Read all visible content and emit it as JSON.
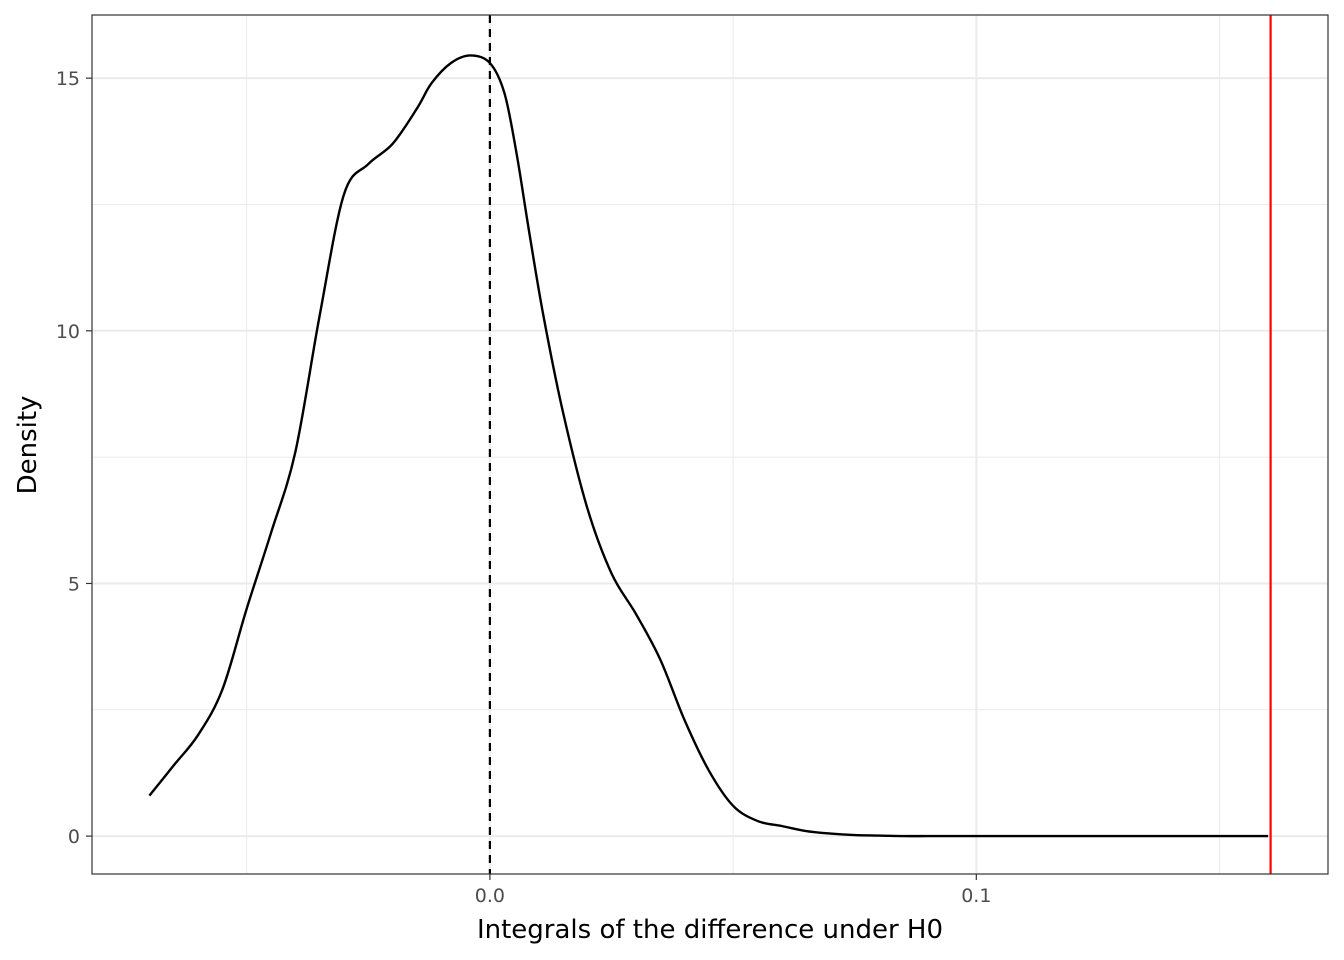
{
  "chart_data": {
    "type": "line",
    "title": "",
    "xlabel": "Integrals of the difference under H0",
    "ylabel": "Density",
    "xlim": [
      -0.0818,
      0.1723
    ],
    "ylim": [
      -0.75,
      16.25
    ],
    "x_ticks": [
      {
        "value": 0.0,
        "label": "0.0"
      },
      {
        "value": 0.1,
        "label": "0.1"
      }
    ],
    "x_minor_grid": [
      -0.05,
      0.05,
      0.15
    ],
    "y_ticks": [
      {
        "value": 0,
        "label": "0"
      },
      {
        "value": 5,
        "label": "5"
      },
      {
        "value": 10,
        "label": "10"
      },
      {
        "value": 15,
        "label": "15"
      }
    ],
    "y_minor_grid": [
      2.5,
      7.5,
      12.5
    ],
    "grid": true,
    "series": [
      {
        "color": "#000000",
        "x": [
          -0.07,
          -0.065,
          -0.06,
          -0.055,
          -0.05,
          -0.045,
          -0.04,
          -0.035,
          -0.03,
          -0.025,
          -0.02,
          -0.015,
          -0.012,
          -0.008,
          -0.004,
          0.0,
          0.003,
          0.0055,
          0.008,
          0.011,
          0.015,
          0.02,
          0.025,
          0.03,
          0.035,
          0.04,
          0.045,
          0.05,
          0.055,
          0.06,
          0.065,
          0.07,
          0.075,
          0.08,
          0.085,
          0.09,
          0.095,
          0.1,
          0.11,
          0.12,
          0.13,
          0.14,
          0.15,
          0.16
        ],
        "y": [
          0.8,
          1.4,
          2.0,
          2.9,
          4.5,
          6.0,
          7.6,
          10.3,
          12.7,
          13.3,
          13.7,
          14.4,
          14.9,
          15.3,
          15.45,
          15.3,
          14.7,
          13.5,
          12.0,
          10.3,
          8.4,
          6.5,
          5.2,
          4.4,
          3.5,
          2.3,
          1.3,
          0.6,
          0.3,
          0.2,
          0.1,
          0.05,
          0.02,
          0.01,
          0.0,
          0.0,
          0.0,
          0.0,
          0.0,
          0.0,
          0.0,
          0.0,
          0.0,
          0.0
        ]
      }
    ],
    "reference_lines": [
      {
        "x": 0.0,
        "style": "dashed",
        "color": "#000000"
      },
      {
        "x": 0.1605,
        "style": "solid",
        "color": "#ff0000"
      }
    ]
  }
}
